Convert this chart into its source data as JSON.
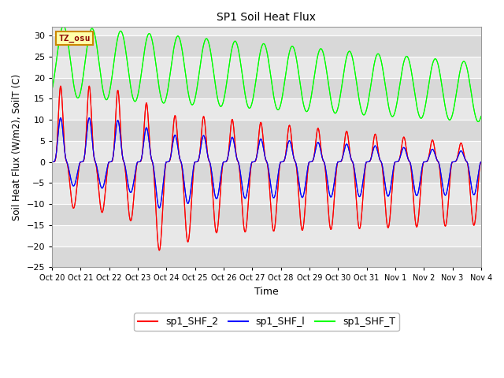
{
  "title": "SP1 Soil Heat Flux",
  "xlabel": "Time",
  "ylabel": "Soil Heat Flux (W/m2), SoilT (C)",
  "ylim": [
    -25,
    32
  ],
  "yticks": [
    -25,
    -20,
    -15,
    -10,
    -5,
    0,
    5,
    10,
    15,
    20,
    25,
    30
  ],
  "tz_label": "TZ_osu",
  "tz_bg": "#ffffaa",
  "tz_border": "#cc8800",
  "fig_bg": "#ffffff",
  "plot_bg": "#e8e8e8",
  "grid_color": "#ffffff",
  "colors": {
    "sp1_SHF_2": "#ff0000",
    "sp1_SHF_1": "#0000ff",
    "sp1_SHF_T": "#00ff00"
  },
  "legend_labels": [
    "sp1_SHF_2",
    "sp1_SHF_l",
    "sp1_SHF_T"
  ],
  "xtick_labels": [
    "Oct 20",
    "Oct 21",
    "Oct 22",
    "Oct 23",
    "Oct 24",
    "Oct 25",
    "Oct 26",
    "Oct 27",
    "Oct 28",
    "Oct 29",
    "Oct 30",
    "Oct 31",
    "Nov 1",
    "Nov 2",
    "Nov 3",
    "Nov 4"
  ],
  "num_days": 15,
  "figsize": [
    6.4,
    4.8
  ],
  "dpi": 100
}
